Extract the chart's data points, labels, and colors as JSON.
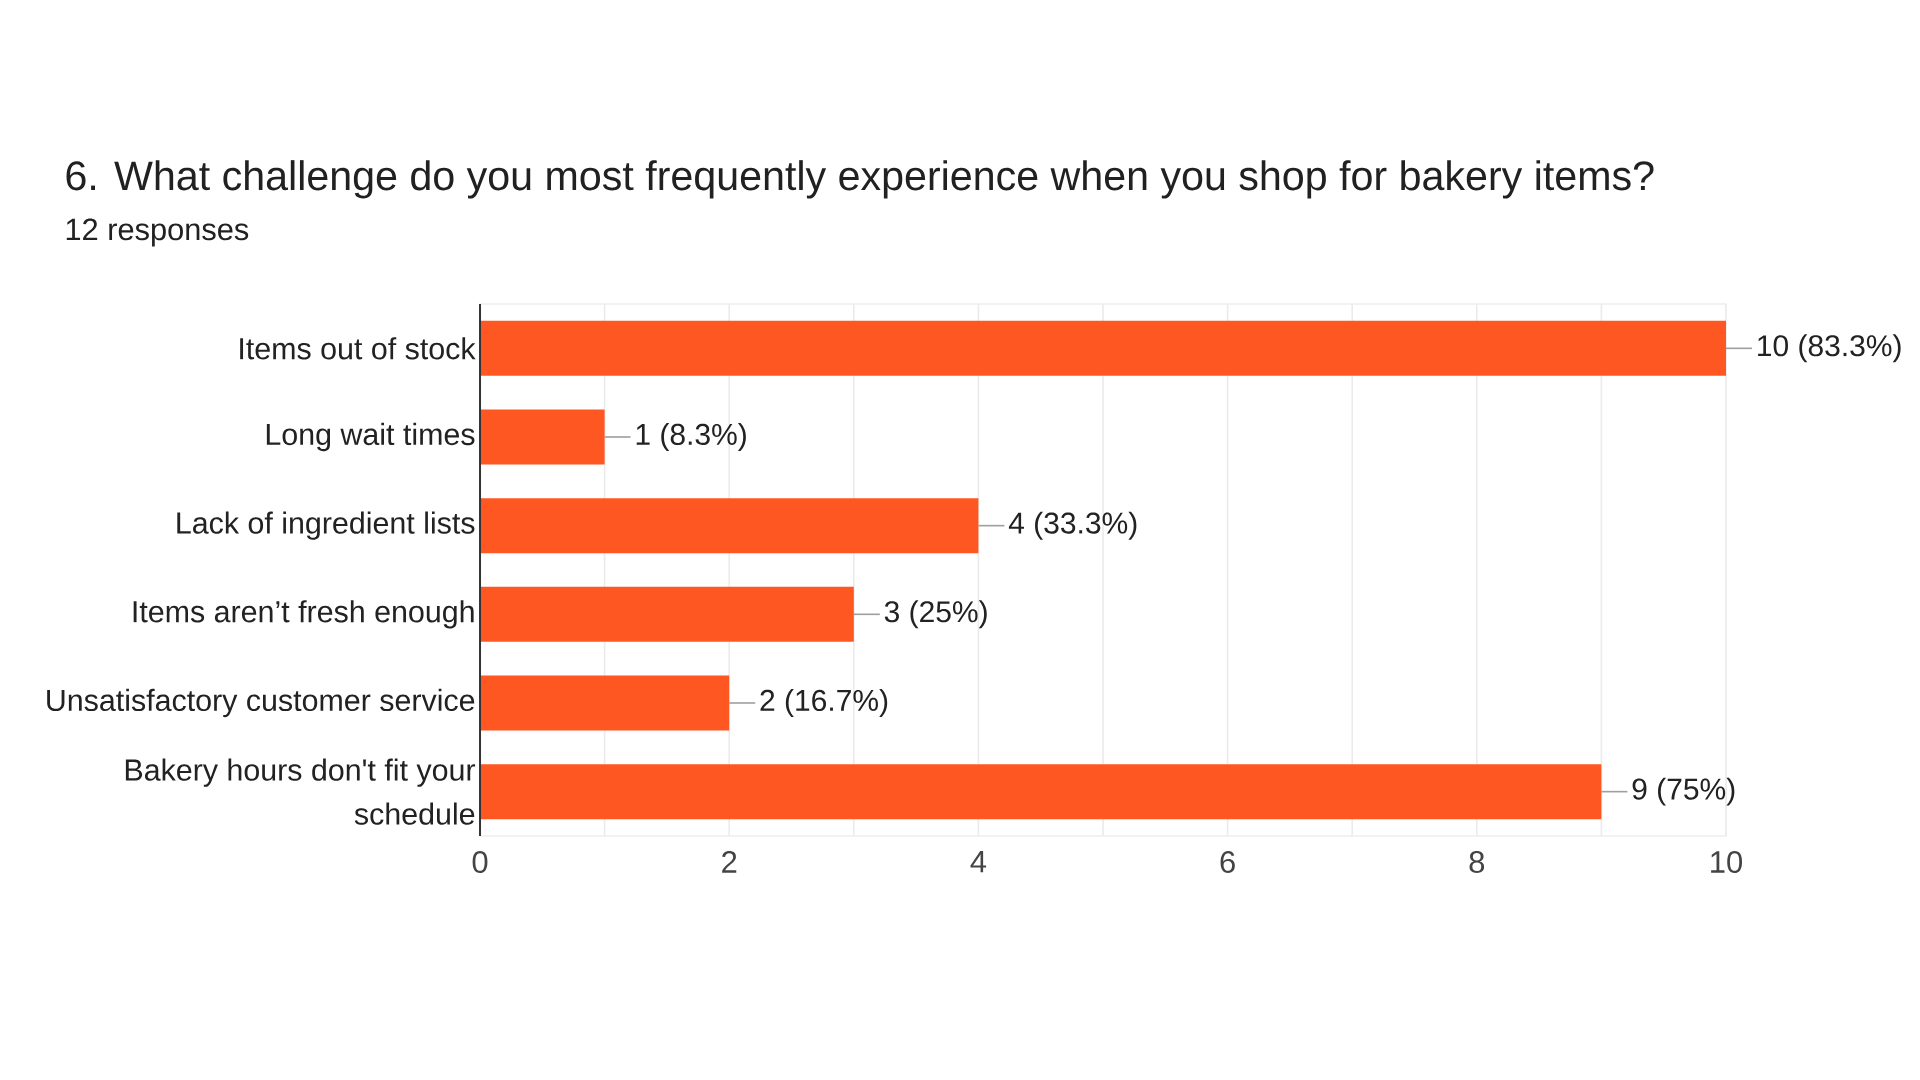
{
  "chart_data": {
    "type": "bar",
    "orientation": "horizontal",
    "title": "6. What challenge do you most frequently experience when you shop for bakery items?",
    "subtitle": "12 responses",
    "categories": [
      "Items out of stock",
      "Long wait times",
      "Lack of ingredient lists",
      "Items aren’t fresh enough",
      "Unsatisfactory customer service",
      "Bakery hours don't fit your schedule"
    ],
    "values": [
      10,
      1,
      4,
      3,
      2,
      9
    ],
    "color": "#ff5722",
    "value_labels": [
      "10 (83.3%)",
      "1 (8.3%)",
      "4 (33.3%)",
      "3 (25%)",
      "2 (16.7%)",
      "9 (75%)"
    ],
    "xlim": [
      0,
      10
    ],
    "xticks": [
      0,
      {
        "value": 1,
        "label": null
      },
      2,
      {
        "value": 3,
        "label": null
      },
      4,
      {
        "value": 5,
        "label": null
      },
      6,
      {
        "value": 7,
        "label": null
      },
      8,
      {
        "value": 9,
        "label": null
      },
      10
    ],
    "grid": "x"
  }
}
